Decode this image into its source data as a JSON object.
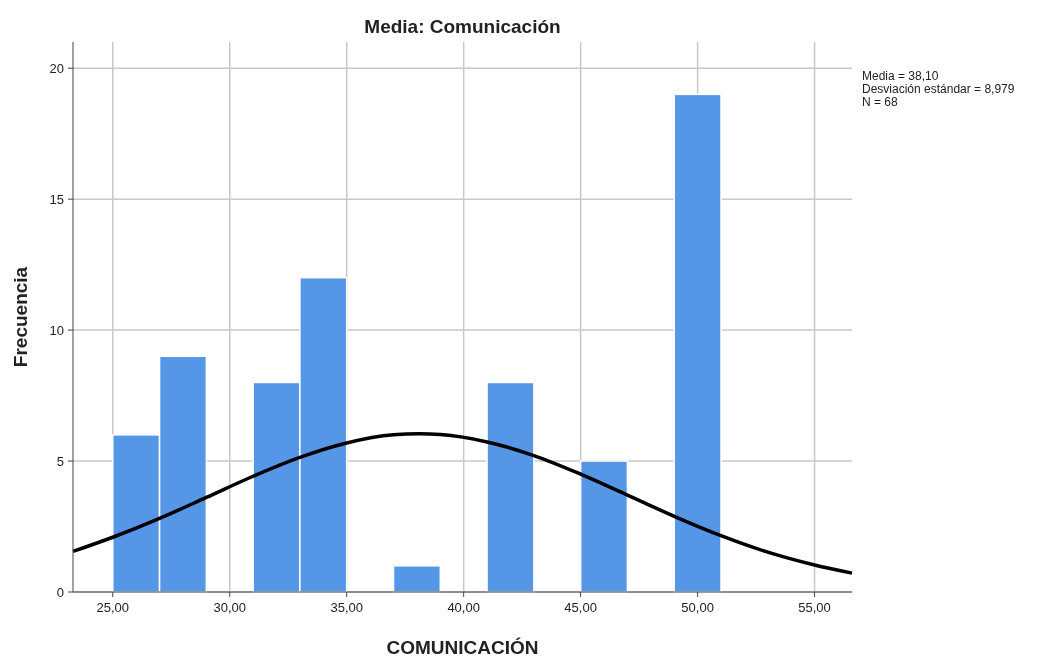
{
  "chart_data": {
    "type": "histogram",
    "title": "Media: Comunicación",
    "xlabel": "COMUNICACIÓN",
    "ylabel": "Frecuencia",
    "bins": [
      25,
      27,
      29,
      31,
      33,
      35,
      37,
      39,
      41,
      43,
      45,
      47,
      49,
      51
    ],
    "values": [
      6,
      9,
      0,
      8,
      12,
      0,
      1,
      0,
      8,
      0,
      5,
      0,
      19
    ],
    "color": "#5596e6",
    "series": [
      {
        "type": "line",
        "color": "#000000",
        "x": [
          23.3,
          25,
          27,
          29,
          31,
          33,
          35,
          37,
          38.1,
          39,
          41,
          43,
          45,
          47,
          49,
          51,
          53,
          55,
          56.6
        ],
        "values": [
          1.55,
          2.09,
          2.81,
          3.61,
          4.42,
          5.14,
          5.69,
          6.0,
          6.04,
          6.01,
          5.73,
          5.21,
          4.5,
          3.7,
          2.89,
          2.15,
          1.52,
          1.03,
          0.72
        ]
      }
    ],
    "xlim": [
      23.3,
      56.6
    ],
    "xticks": [
      {
        "value": 25,
        "label": "25,00"
      },
      {
        "value": 30,
        "label": "30,00"
      },
      {
        "value": 35,
        "label": "35,00"
      },
      {
        "value": 40,
        "label": "40,00"
      },
      {
        "value": 45,
        "label": "45,00"
      },
      {
        "value": 50,
        "label": "50,00"
      },
      {
        "value": 55,
        "label": "55,00"
      }
    ],
    "ylim": [
      0,
      21
    ],
    "yticks": [
      0,
      5,
      10,
      15,
      20
    ],
    "grid": true,
    "marker": "none",
    "annotations": [
      "Media = 38,10",
      "Desviación estándar = 8,979",
      "N = 68"
    ]
  }
}
